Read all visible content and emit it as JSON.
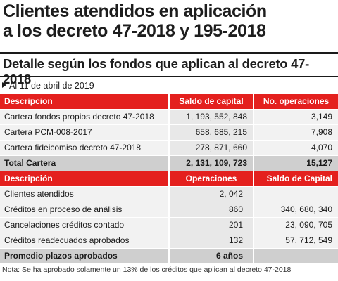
{
  "title_line1": "Clientes atendidos en aplicación",
  "title_line2": "a los decreto 47-2018 y 195-2018",
  "subtitle": "Detalle según los fondos que aplican al decreto 47-2018",
  "date": "Al 11 de abril de 2019",
  "table1": {
    "headers": [
      "Descripcion",
      "Saldo de capital",
      "No. operaciones"
    ],
    "rows": [
      [
        "Cartera fondos propios  decreto 47-2018",
        "1, 193, 552, 848",
        "3,149"
      ],
      [
        "Cartera PCM-008-2017",
        "658, 685, 215",
        "7,908"
      ],
      [
        "Cartera fideicomiso  decreto 47-2018",
        "278, 871, 660",
        "4,070"
      ]
    ],
    "total": [
      "Total Cartera",
      "2, 131, 109, 723",
      "15,127"
    ]
  },
  "table2": {
    "headers": [
      "Descripción",
      "Operaciones",
      "Saldo de Capital"
    ],
    "rows": [
      [
        "Clientes atendidos",
        "2, 042",
        ""
      ],
      [
        "Créditos en proceso de análisis",
        "860",
        "340, 680, 340"
      ],
      [
        "Cancelaciones créditos contado",
        "201",
        "23, 090, 705"
      ],
      [
        "Créditos readecuados aprobados",
        "132",
        "57, 712, 549"
      ]
    ],
    "total": [
      "Promedio plazos aprobados",
      "6 años",
      ""
    ]
  },
  "note": "Nota: Se ha aprobado solamente un 13% de los créditos que aplican al decreto 47-2018",
  "colors": {
    "header_red": "#e4201e",
    "row_gray": "#f2f2f2",
    "total_gray": "#cfcfcf"
  }
}
